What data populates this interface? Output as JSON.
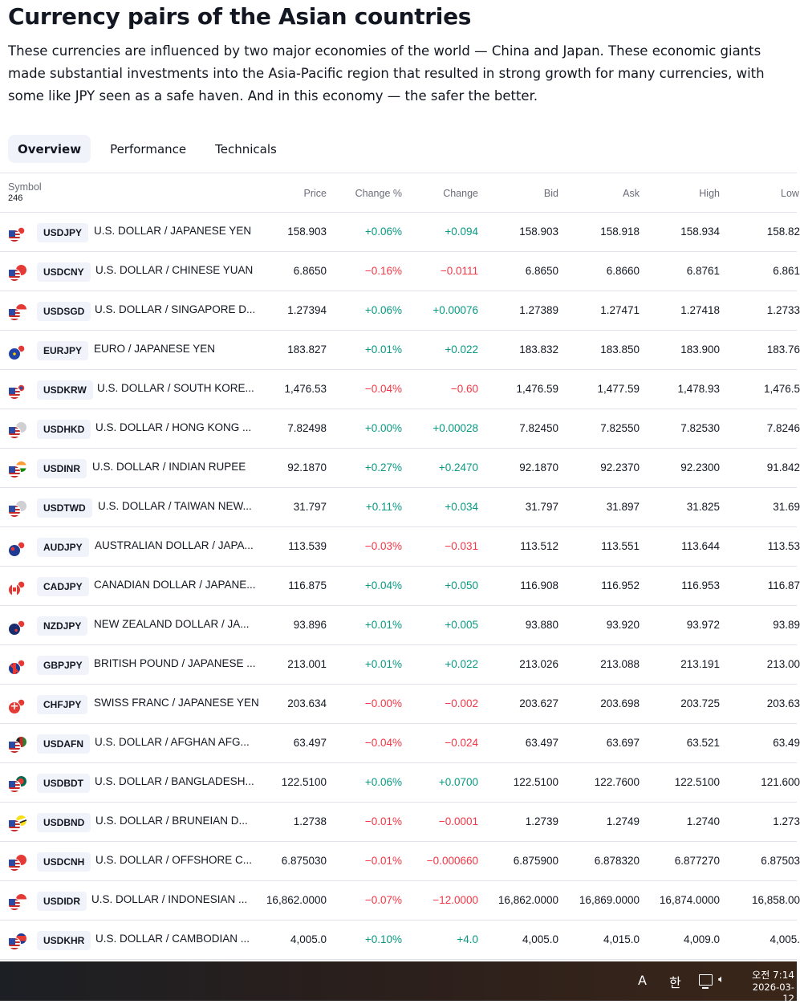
{
  "page": {
    "title": "Currency pairs of the Asian countries",
    "description": "These currencies are influenced by two major economies of the world — China and Japan. These economic giants made substantial investments into the Asia-Pacific region that resulted in strong growth for many currencies, with some like JPY seen as a safe haven. And in this economy — the safer the better."
  },
  "tabs": [
    {
      "label": "Overview",
      "active": true
    },
    {
      "label": "Performance",
      "active": false
    },
    {
      "label": "Technicals",
      "active": false
    }
  ],
  "table": {
    "symbol_header": "Symbol",
    "symbol_count": "246",
    "columns": [
      "Price",
      "Change %",
      "Change",
      "Bid",
      "Ask",
      "High",
      "Low"
    ],
    "rows": [
      {
        "flags": [
          "us",
          "jp"
        ],
        "symbol": "USDJPY",
        "description": "U.S. DOLLAR / JAPANESE YEN",
        "price": "158.903",
        "change_pct": "+0.06%",
        "change": "+0.094",
        "bid": "158.903",
        "ask": "158.918",
        "high": "158.934",
        "low": "158.82",
        "direction": "pos"
      },
      {
        "flags": [
          "us",
          "cn"
        ],
        "symbol": "USDCNY",
        "description": "U.S. DOLLAR / CHINESE YUAN",
        "price": "6.8650",
        "change_pct": "−0.16%",
        "change": "−0.0111",
        "bid": "6.8650",
        "ask": "6.8660",
        "high": "6.8761",
        "low": "6.861",
        "direction": "neg"
      },
      {
        "flags": [
          "us",
          "sg"
        ],
        "symbol": "USDSGD",
        "description": "U.S. DOLLAR / SINGAPORE D...",
        "price": "1.27394",
        "change_pct": "+0.06%",
        "change": "+0.00076",
        "bid": "1.27389",
        "ask": "1.27471",
        "high": "1.27418",
        "low": "1.2733",
        "direction": "pos"
      },
      {
        "flags": [
          "eu",
          "jp"
        ],
        "symbol": "EURJPY",
        "description": "EURO / JAPANESE YEN",
        "price": "183.827",
        "change_pct": "+0.01%",
        "change": "+0.022",
        "bid": "183.832",
        "ask": "183.850",
        "high": "183.900",
        "low": "183.76",
        "direction": "pos"
      },
      {
        "flags": [
          "us",
          "kr"
        ],
        "symbol": "USDKRW",
        "description": "U.S. DOLLAR / SOUTH KORE...",
        "price": "1,476.53",
        "change_pct": "−0.04%",
        "change": "−0.60",
        "bid": "1,476.59",
        "ask": "1,477.59",
        "high": "1,478.93",
        "low": "1,476.5",
        "direction": "neg"
      },
      {
        "flags": [
          "us",
          "hk"
        ],
        "symbol": "USDHKD",
        "description": "U.S. DOLLAR / HONG KONG ...",
        "price": "7.82498",
        "change_pct": "+0.00%",
        "change": "+0.00028",
        "bid": "7.82450",
        "ask": "7.82550",
        "high": "7.82530",
        "low": "7.8246",
        "direction": "pos"
      },
      {
        "flags": [
          "us",
          "in"
        ],
        "symbol": "USDINR",
        "description": "U.S. DOLLAR / INDIAN RUPEE",
        "price": "92.1870",
        "change_pct": "+0.27%",
        "change": "+0.2470",
        "bid": "92.1870",
        "ask": "92.2370",
        "high": "92.2300",
        "low": "91.842",
        "direction": "pos"
      },
      {
        "flags": [
          "us",
          "tw"
        ],
        "symbol": "USDTWD",
        "description": "U.S. DOLLAR / TAIWAN NEW...",
        "price": "31.797",
        "change_pct": "+0.11%",
        "change": "+0.034",
        "bid": "31.797",
        "ask": "31.897",
        "high": "31.825",
        "low": "31.69",
        "direction": "pos"
      },
      {
        "flags": [
          "au",
          "jp"
        ],
        "symbol": "AUDJPY",
        "description": "AUSTRALIAN DOLLAR / JAPA...",
        "price": "113.539",
        "change_pct": "−0.03%",
        "change": "−0.031",
        "bid": "113.512",
        "ask": "113.551",
        "high": "113.644",
        "low": "113.53",
        "direction": "neg"
      },
      {
        "flags": [
          "ca",
          "jp"
        ],
        "symbol": "CADJPY",
        "description": "CANADIAN DOLLAR / JAPANE...",
        "price": "116.875",
        "change_pct": "+0.04%",
        "change": "+0.050",
        "bid": "116.908",
        "ask": "116.952",
        "high": "116.953",
        "low": "116.87",
        "direction": "pos"
      },
      {
        "flags": [
          "nz",
          "jp"
        ],
        "symbol": "NZDJPY",
        "description": "NEW ZEALAND DOLLAR / JA...",
        "price": "93.896",
        "change_pct": "+0.01%",
        "change": "+0.005",
        "bid": "93.880",
        "ask": "93.920",
        "high": "93.972",
        "low": "93.89",
        "direction": "pos"
      },
      {
        "flags": [
          "gb",
          "jp"
        ],
        "symbol": "GBPJPY",
        "description": "BRITISH POUND / JAPANESE ...",
        "price": "213.001",
        "change_pct": "+0.01%",
        "change": "+0.022",
        "bid": "213.026",
        "ask": "213.088",
        "high": "213.191",
        "low": "213.00",
        "direction": "pos"
      },
      {
        "flags": [
          "ch",
          "jp"
        ],
        "symbol": "CHFJPY",
        "description": "SWISS FRANC / JAPANESE YEN",
        "price": "203.634",
        "change_pct": "−0.00%",
        "change": "−0.002",
        "bid": "203.627",
        "ask": "203.698",
        "high": "203.725",
        "low": "203.63",
        "direction": "neg"
      },
      {
        "flags": [
          "us",
          "af"
        ],
        "symbol": "USDAFN",
        "description": "U.S. DOLLAR / AFGHAN AFG...",
        "price": "63.497",
        "change_pct": "−0.04%",
        "change": "−0.024",
        "bid": "63.497",
        "ask": "63.697",
        "high": "63.521",
        "low": "63.49",
        "direction": "neg"
      },
      {
        "flags": [
          "us",
          "bd"
        ],
        "symbol": "USDBDT",
        "description": "U.S. DOLLAR / BANGLADESH...",
        "price": "122.5100",
        "change_pct": "+0.06%",
        "change": "+0.0700",
        "bid": "122.5100",
        "ask": "122.7600",
        "high": "122.5100",
        "low": "121.600",
        "direction": "pos"
      },
      {
        "flags": [
          "us",
          "bn"
        ],
        "symbol": "USDBND",
        "description": "U.S. DOLLAR / BRUNEIAN D...",
        "price": "1.2738",
        "change_pct": "−0.01%",
        "change": "−0.0001",
        "bid": "1.2739",
        "ask": "1.2749",
        "high": "1.2740",
        "low": "1.273",
        "direction": "neg"
      },
      {
        "flags": [
          "us",
          "cn"
        ],
        "symbol": "USDCNH",
        "description": "U.S. DOLLAR / OFFSHORE C...",
        "price": "6.875030",
        "change_pct": "−0.01%",
        "change": "−0.000660",
        "bid": "6.875900",
        "ask": "6.878320",
        "high": "6.877270",
        "low": "6.87503",
        "direction": "neg"
      },
      {
        "flags": [
          "us",
          "id"
        ],
        "symbol": "USDIDR",
        "description": "U.S. DOLLAR / INDONESIAN ...",
        "price": "16,862.0000",
        "change_pct": "−0.07%",
        "change": "−12.0000",
        "bid": "16,862.0000",
        "ask": "16,869.0000",
        "high": "16,874.0000",
        "low": "16,858.00",
        "direction": "neg"
      },
      {
        "flags": [
          "us",
          "kh"
        ],
        "symbol": "USDKHR",
        "description": "U.S. DOLLAR / CAMBODIAN ...",
        "price": "4,005.0",
        "change_pct": "+0.10%",
        "change": "+4.0",
        "bid": "4,005.0",
        "ask": "4,015.0",
        "high": "4,009.0",
        "low": "4,005.",
        "direction": "pos"
      }
    ]
  },
  "taskbar": {
    "input_mode": "A",
    "ime": "한",
    "time": "오전 7:14",
    "date": "2026-03-12",
    "icons": [
      "network-icon",
      "volume-icon"
    ]
  },
  "colors": {
    "positive": "#089981",
    "negative": "#f23645",
    "badge_bg": "#f0f3fa"
  }
}
